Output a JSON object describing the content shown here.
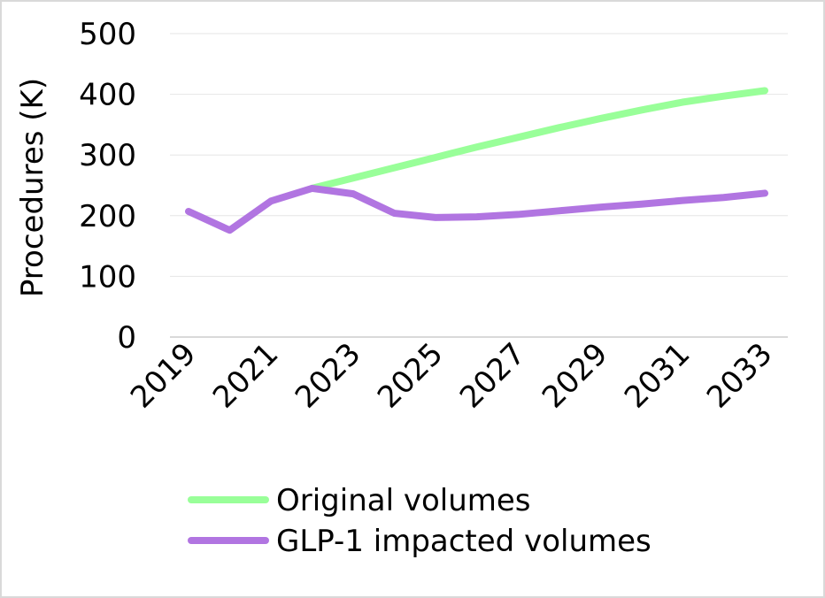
{
  "chart_data": {
    "type": "line",
    "title": "",
    "xlabel": "",
    "ylabel": "Procedures (K)",
    "ylim": [
      0,
      500
    ],
    "yticks": [
      0,
      100,
      200,
      300,
      400,
      500
    ],
    "grid": true,
    "x": [
      2019,
      2020,
      2021,
      2022,
      2023,
      2024,
      2025,
      2026,
      2027,
      2028,
      2029,
      2030,
      2031,
      2032,
      2033
    ],
    "xtick_labels": [
      "2019",
      "2021",
      "2023",
      "2025",
      "2027",
      "2029",
      "2031",
      "2033"
    ],
    "legend_position": "bottom",
    "series": [
      {
        "name": "Original volumes",
        "color": "#99ff99",
        "values": [
          null,
          null,
          null,
          245,
          262,
          279,
          296,
          313,
          329,
          345,
          360,
          374,
          387,
          397,
          406
        ]
      },
      {
        "name": "GLP-1 impacted volumes",
        "color": "#b175e1",
        "values": [
          207,
          176,
          224,
          245,
          236,
          204,
          197,
          198,
          202,
          208,
          214,
          219,
          225,
          230,
          237
        ]
      }
    ]
  }
}
